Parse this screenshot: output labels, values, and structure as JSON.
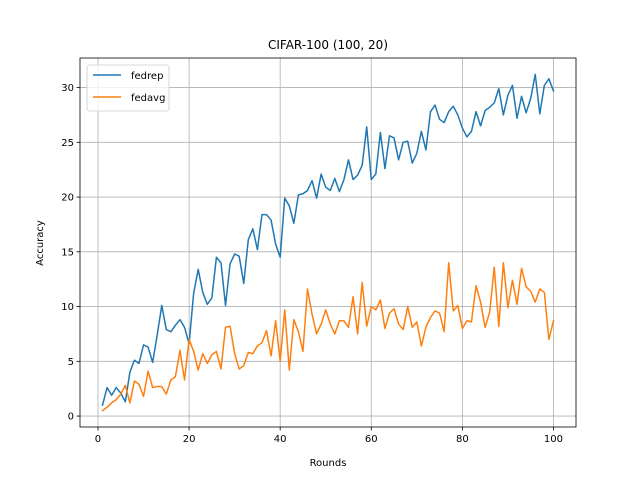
{
  "chart_data": {
    "type": "line",
    "title": "CIFAR-100 (100, 20)",
    "xlabel": "Rounds",
    "ylabel": "Accuracy",
    "xlim": [
      -3.95,
      104.95
    ],
    "ylim": [
      -1.0,
      32.7
    ],
    "xticks": [
      0,
      20,
      40,
      60,
      80,
      100
    ],
    "yticks": [
      0,
      5,
      10,
      15,
      20,
      25,
      30
    ],
    "grid": true,
    "legend_position": "upper-left",
    "x": [
      1,
      2,
      3,
      4,
      5,
      6,
      7,
      8,
      9,
      10,
      11,
      12,
      13,
      14,
      15,
      16,
      17,
      18,
      19,
      20,
      21,
      22,
      23,
      24,
      25,
      26,
      27,
      28,
      29,
      30,
      31,
      32,
      33,
      34,
      35,
      36,
      37,
      38,
      39,
      40,
      41,
      42,
      43,
      44,
      45,
      46,
      47,
      48,
      49,
      50,
      51,
      52,
      53,
      54,
      55,
      56,
      57,
      58,
      59,
      60,
      61,
      62,
      63,
      64,
      65,
      66,
      67,
      68,
      69,
      70,
      71,
      72,
      73,
      74,
      75,
      76,
      77,
      78,
      79,
      80,
      81,
      82,
      83,
      84,
      85,
      86,
      87,
      88,
      89,
      90,
      91,
      92,
      93,
      94,
      95,
      96,
      97,
      98,
      99,
      100
    ],
    "series": [
      {
        "name": "fedrep",
        "color": "#1f77b4",
        "values": [
          1.0,
          2.6,
          1.9,
          2.6,
          2.1,
          1.3,
          4.0,
          5.1,
          4.8,
          6.5,
          6.3,
          4.9,
          7.4,
          10.1,
          7.9,
          7.7,
          8.3,
          8.8,
          8.1,
          6.6,
          11.2,
          13.4,
          11.3,
          10.2,
          10.8,
          14.5,
          14.0,
          10.1,
          13.9,
          14.8,
          14.6,
          12.1,
          16.1,
          17.1,
          15.2,
          18.4,
          18.4,
          17.9,
          15.7,
          14.5,
          19.9,
          19.2,
          17.6,
          20.2,
          20.3,
          20.6,
          21.5,
          19.9,
          22.1,
          20.9,
          20.6,
          21.7,
          20.5,
          21.6,
          23.4,
          21.6,
          22.0,
          22.9,
          26.4,
          21.6,
          22.1,
          25.9,
          22.6,
          25.6,
          25.4,
          23.4,
          25.0,
          25.1,
          23.1,
          24.0,
          26.0,
          24.3,
          27.8,
          28.4,
          27.1,
          26.8,
          27.8,
          28.3,
          27.5,
          26.3,
          25.5,
          26.0,
          27.8,
          26.5,
          27.9,
          28.2,
          28.6,
          29.9,
          27.5,
          29.3,
          30.2,
          27.2,
          29.2,
          27.7,
          29.0,
          31.2,
          27.6,
          30.2,
          30.8,
          29.7
        ]
      },
      {
        "name": "fedavg",
        "color": "#ff7f0e",
        "values": [
          0.5,
          0.8,
          1.2,
          1.5,
          2.0,
          2.8,
          1.2,
          3.2,
          2.9,
          1.8,
          4.1,
          2.6,
          2.7,
          2.7,
          2.0,
          3.3,
          3.6,
          6.0,
          3.3,
          7.0,
          5.9,
          4.2,
          5.7,
          4.8,
          5.6,
          5.9,
          4.3,
          8.1,
          8.2,
          5.7,
          4.3,
          4.6,
          5.8,
          5.7,
          6.4,
          6.7,
          7.8,
          5.5,
          8.7,
          5.0,
          9.7,
          4.2,
          8.8,
          7.7,
          5.9,
          11.6,
          9.3,
          7.5,
          8.4,
          9.7,
          8.4,
          7.5,
          8.7,
          8.7,
          8.1,
          10.9,
          7.5,
          12.2,
          8.2,
          10.0,
          9.7,
          10.6,
          8.0,
          9.4,
          9.8,
          8.4,
          7.9,
          10.0,
          8.1,
          8.6,
          6.4,
          8.1,
          9.0,
          9.6,
          9.4,
          7.7,
          14.0,
          9.6,
          10.1,
          8.0,
          8.7,
          8.6,
          11.9,
          10.4,
          8.1,
          9.5,
          13.6,
          8.2,
          14.0,
          9.9,
          12.4,
          10.2,
          13.5,
          11.8,
          11.4,
          10.4,
          11.6,
          11.3,
          7.0,
          8.7
        ]
      }
    ]
  }
}
